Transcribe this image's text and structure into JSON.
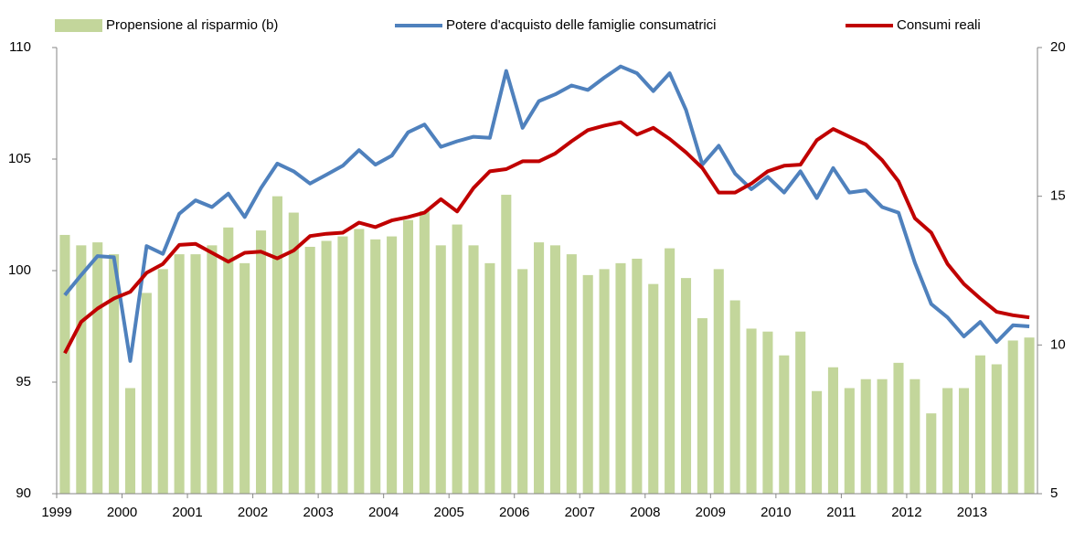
{
  "chart_data": {
    "type": "bar",
    "categories": [
      "1999",
      null,
      null,
      null,
      "2000",
      null,
      null,
      null,
      "2001",
      null,
      null,
      null,
      "2002",
      null,
      null,
      null,
      "2003",
      null,
      null,
      null,
      "2004",
      null,
      null,
      null,
      "2005",
      null,
      null,
      null,
      "2006",
      null,
      null,
      null,
      "2007",
      null,
      null,
      null,
      "2008",
      null,
      null,
      null,
      "2009",
      null,
      null,
      null,
      "2010",
      null,
      null,
      null,
      "2011",
      null,
      null,
      null,
      "2012",
      null,
      null,
      null,
      "2013",
      null,
      null,
      null
    ],
    "ylim": [
      90,
      110
    ],
    "yticks": [
      90,
      95,
      100,
      105,
      110
    ],
    "y2lim": [
      5,
      20
    ],
    "y2ticks": [
      5,
      10,
      15,
      20
    ],
    "series": [
      {
        "name": "Propensione al risparmio (b)",
        "type": "bar",
        "axis": "y2",
        "color": "#c3d69b",
        "values": [
          13.7,
          13.35,
          13.45,
          13.05,
          8.55,
          11.75,
          12.55,
          13.05,
          13.05,
          13.35,
          13.95,
          12.75,
          13.85,
          15.0,
          14.45,
          13.3,
          13.5,
          13.65,
          13.9,
          13.55,
          13.65,
          14.2,
          14.5,
          13.35,
          14.05,
          13.35,
          12.75,
          15.05,
          12.55,
          13.45,
          13.35,
          13.05,
          12.35,
          12.55,
          12.75,
          12.9,
          12.05,
          13.25,
          12.25,
          10.9,
          12.55,
          11.5,
          10.55,
          10.45,
          9.65,
          10.45,
          8.45,
          9.25,
          8.55,
          8.85,
          8.85,
          9.4,
          8.85,
          7.7,
          8.55,
          8.55,
          9.65,
          9.35,
          10.15,
          10.25
        ]
      },
      {
        "name": "Potere d'acquisto delle famiglie consumatrici",
        "type": "line",
        "color": "#4f81bd",
        "values": [
          98.9,
          99.8,
          100.65,
          100.6,
          95.95,
          101.1,
          100.75,
          102.55,
          103.15,
          102.85,
          103.45,
          102.4,
          103.7,
          104.8,
          104.45,
          103.9,
          104.3,
          104.7,
          105.4,
          104.75,
          105.15,
          106.2,
          106.55,
          105.55,
          105.8,
          106.0,
          105.95,
          108.95,
          106.4,
          107.6,
          107.9,
          108.3,
          108.1,
          108.65,
          109.15,
          108.85,
          108.05,
          108.85,
          107.2,
          104.75,
          105.6,
          104.35,
          103.65,
          104.2,
          103.5,
          104.45,
          103.25,
          104.6,
          103.5,
          103.6,
          102.85,
          102.6,
          100.35,
          98.5,
          97.9,
          97.05,
          97.7,
          96.8,
          97.55,
          97.5
        ]
      },
      {
        "name": "Consumi reali",
        "type": "line",
        "color": "#c00000",
        "values": [
          96.3,
          97.7,
          98.3,
          98.75,
          99.05,
          99.9,
          100.3,
          101.15,
          101.2,
          100.8,
          100.4,
          100.8,
          100.85,
          100.55,
          100.9,
          101.55,
          101.65,
          101.7,
          102.15,
          101.95,
          102.25,
          102.4,
          102.6,
          103.2,
          102.65,
          103.7,
          104.45,
          104.55,
          104.9,
          104.9,
          105.25,
          105.8,
          106.3,
          106.5,
          106.65,
          106.1,
          106.4,
          105.9,
          105.3,
          104.6,
          103.5,
          103.5,
          103.9,
          104.45,
          104.7,
          104.75,
          105.85,
          106.35,
          106.0,
          105.65,
          104.95,
          104.0,
          102.35,
          101.7,
          100.3,
          99.4,
          98.75,
          98.15,
          98.0,
          97.9
        ]
      }
    ],
    "legend": "top"
  }
}
